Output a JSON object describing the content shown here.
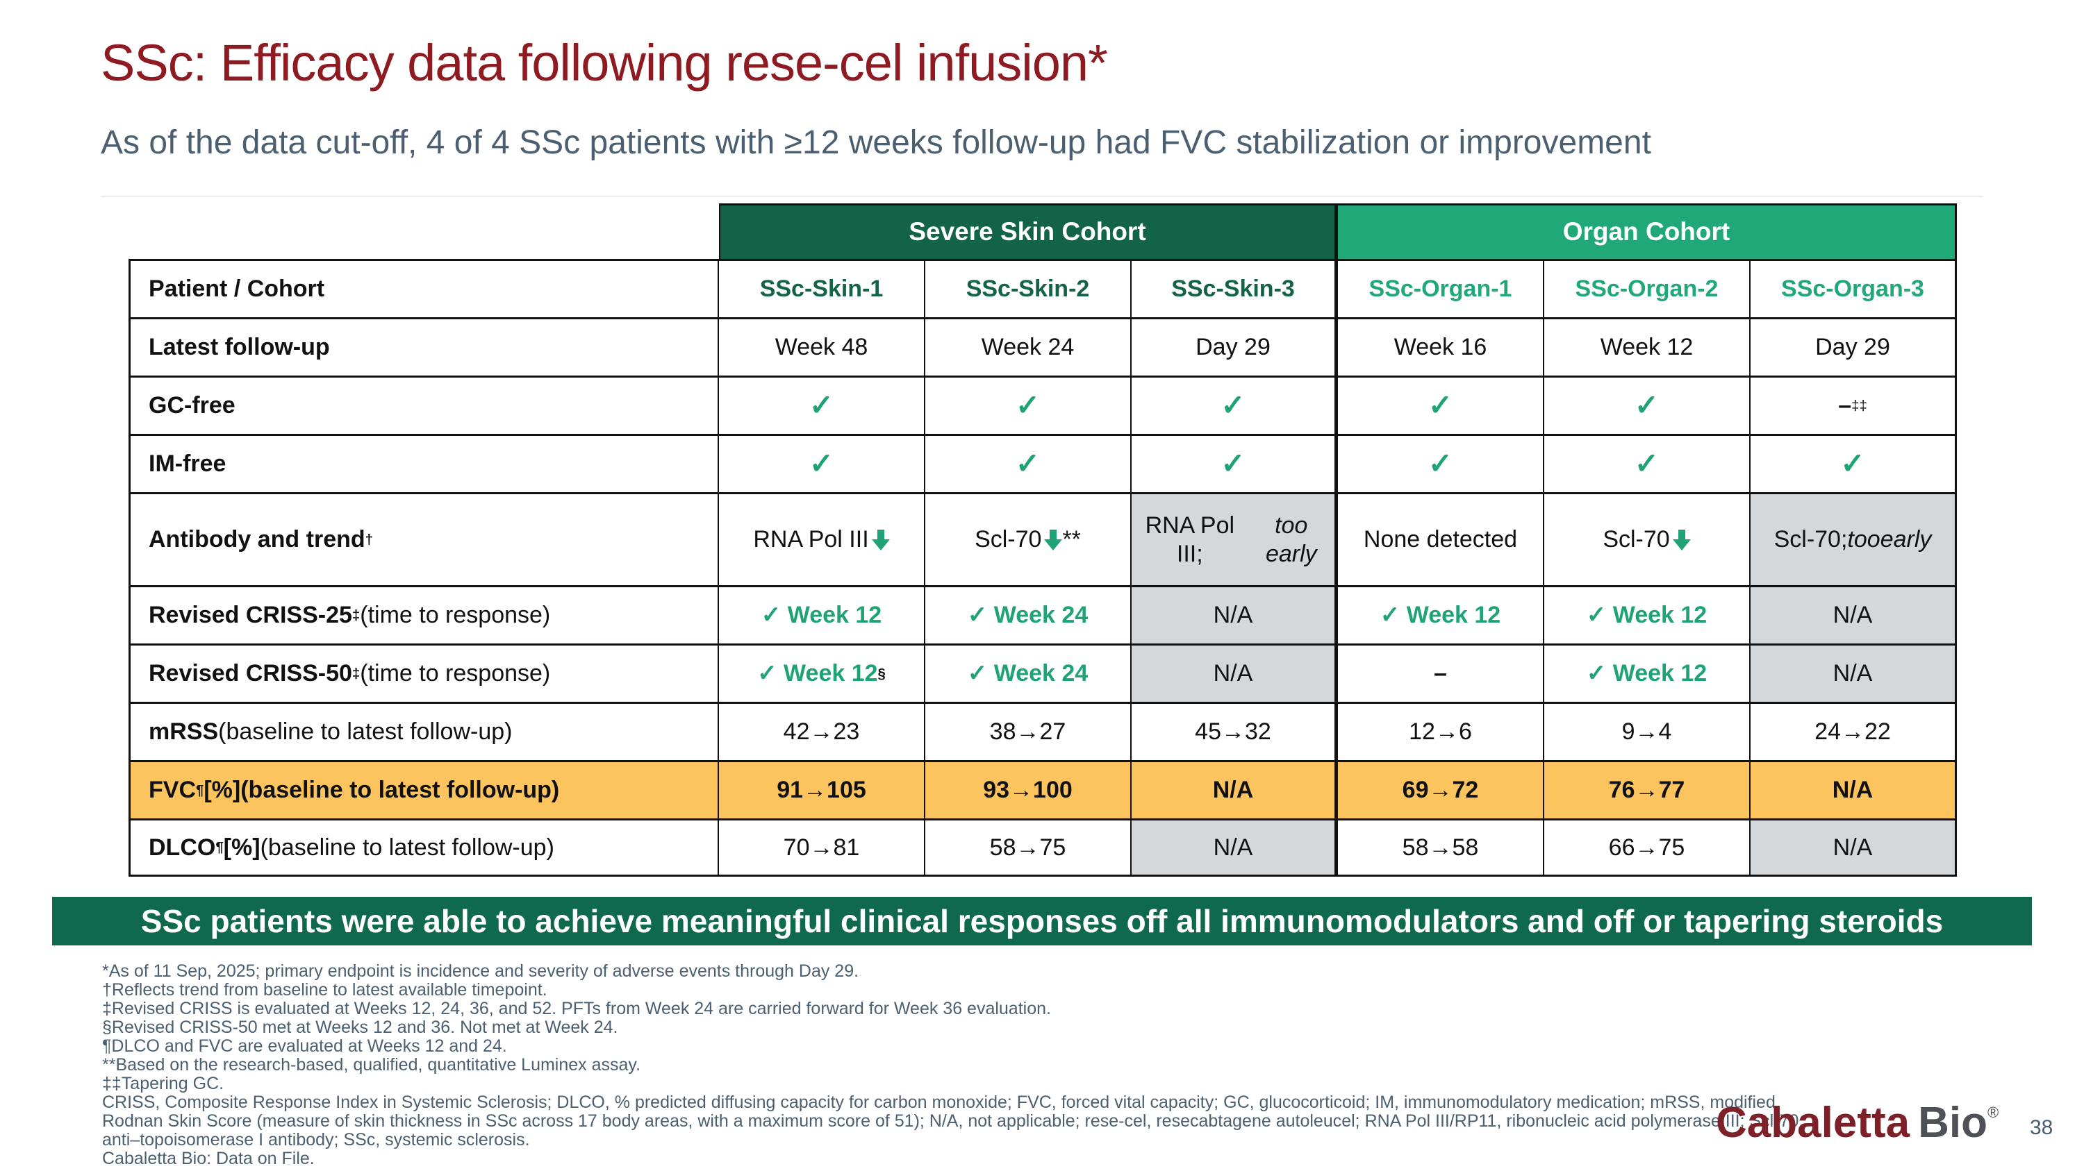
{
  "slide": {
    "title": "SSc: Efficacy data following rese-cel infusion*",
    "subtitle": "As of the data cut-off, 4 of 4 SSc patients with ≥12 weeks follow-up had FVC stabilization or improvement",
    "banner": "SSc patients were able to achieve meaningful clinical responses off all immunomodulators and off or tapering steroids",
    "page_number": "38",
    "logo": {
      "word1": "Cabaletta",
      "word2": "Bio",
      "reg": "®"
    }
  },
  "colors": {
    "title_red": "#8E1B21",
    "subtitle_gray": "#4C5F70",
    "dark_green": "#136349",
    "light_green": "#21A878",
    "check_green": "#1FA376",
    "orange_row": "#FBC45F",
    "gray_cell": "#D5D8DA",
    "banner_green": "#0F6A4D"
  },
  "table": {
    "cohorts": [
      {
        "label": "Severe Skin Cohort",
        "tone": "dark"
      },
      {
        "label": "Organ Cohort",
        "tone": "light"
      }
    ],
    "header_row": {
      "label": "Patient / Cohort",
      "columns": [
        {
          "label": "SSc-Skin-1",
          "tone": "dark"
        },
        {
          "label": "SSc-Skin-2",
          "tone": "dark"
        },
        {
          "label": "SSc-Skin-3",
          "tone": "dark"
        },
        {
          "label": "SSc-Organ-1",
          "tone": "light"
        },
        {
          "label": "SSc-Organ-2",
          "tone": "light"
        },
        {
          "label": "SSc-Organ-3",
          "tone": "light"
        }
      ]
    },
    "rows": [
      {
        "name": "latest-follow-up",
        "label": [
          {
            "t": "Latest follow-up",
            "b": true
          }
        ],
        "cells": [
          {
            "parts": [
              {
                "t": "Week 48"
              }
            ]
          },
          {
            "parts": [
              {
                "t": "Week 24"
              }
            ]
          },
          {
            "parts": [
              {
                "t": "Day 29"
              }
            ]
          },
          {
            "parts": [
              {
                "t": "Week 16"
              }
            ]
          },
          {
            "parts": [
              {
                "t": "Week 12"
              }
            ]
          },
          {
            "parts": [
              {
                "t": "Day 29"
              }
            ]
          }
        ]
      },
      {
        "name": "gc-free",
        "label": [
          {
            "t": "GC-free",
            "b": true
          }
        ],
        "cells": [
          {
            "parts": [
              {
                "check": true
              }
            ]
          },
          {
            "parts": [
              {
                "check": true
              }
            ]
          },
          {
            "parts": [
              {
                "check": true
              }
            ]
          },
          {
            "parts": [
              {
                "check": true
              }
            ]
          },
          {
            "parts": [
              {
                "check": true
              }
            ]
          },
          {
            "parts": [
              {
                "t": "–",
                "b": true
              },
              {
                "t": "‡‡",
                "sup": true
              }
            ]
          }
        ]
      },
      {
        "name": "im-free",
        "label": [
          {
            "t": "IM-free",
            "b": true
          }
        ],
        "cells": [
          {
            "parts": [
              {
                "check": true
              }
            ]
          },
          {
            "parts": [
              {
                "check": true
              }
            ]
          },
          {
            "parts": [
              {
                "check": true
              }
            ]
          },
          {
            "parts": [
              {
                "check": true
              }
            ]
          },
          {
            "parts": [
              {
                "check": true
              }
            ]
          },
          {
            "parts": [
              {
                "check": true
              }
            ]
          }
        ]
      },
      {
        "name": "antibody-and-trend",
        "label": [
          {
            "t": "Antibody and trend",
            "b": true
          },
          {
            "t": "†",
            "sup": true,
            "b": true
          }
        ],
        "cells": [
          {
            "parts": [
              {
                "t": "RNA Pol III "
              },
              {
                "arrow": true
              }
            ]
          },
          {
            "parts": [
              {
                "t": "Scl-70 "
              },
              {
                "arrow": true
              },
              {
                "t": "**"
              }
            ]
          },
          {
            "bg": "gray",
            "parts": [
              {
                "t": "RNA Pol III;"
              },
              {
                "br": true
              },
              {
                "t": "too early",
                "i": true
              }
            ]
          },
          {
            "parts": [
              {
                "t": "None detected"
              }
            ]
          },
          {
            "parts": [
              {
                "t": "Scl-70 "
              },
              {
                "arrow": true
              }
            ]
          },
          {
            "bg": "gray",
            "parts": [
              {
                "t": "Scl-70; "
              },
              {
                "t": "too",
                "i": true
              },
              {
                "br": true
              },
              {
                "t": "early",
                "i": true
              }
            ]
          }
        ]
      },
      {
        "name": "revised-criss-25",
        "label": [
          {
            "t": "Revised CRISS-25",
            "b": true
          },
          {
            "t": "‡",
            "sup": true,
            "b": true
          },
          {
            "t": " (time to response)"
          }
        ],
        "cells": [
          {
            "green": true,
            "parts": [
              {
                "t": "✓ Week 12"
              }
            ]
          },
          {
            "green": true,
            "parts": [
              {
                "t": "✓ Week 24"
              }
            ]
          },
          {
            "bg": "gray",
            "parts": [
              {
                "t": "N/A"
              }
            ]
          },
          {
            "green": true,
            "parts": [
              {
                "t": "✓ Week 12"
              }
            ]
          },
          {
            "green": true,
            "parts": [
              {
                "t": "✓ Week 12"
              }
            ]
          },
          {
            "bg": "gray",
            "parts": [
              {
                "t": "N/A"
              }
            ]
          }
        ]
      },
      {
        "name": "revised-criss-50",
        "label": [
          {
            "t": "Revised CRISS-50",
            "b": true
          },
          {
            "t": "‡",
            "sup": true,
            "b": true
          },
          {
            "t": " (time to response)"
          }
        ],
        "cells": [
          {
            "green": true,
            "parts": [
              {
                "t": "✓ Week 12"
              },
              {
                "t": "§",
                "sup": true,
                "black": true
              }
            ]
          },
          {
            "green": true,
            "parts": [
              {
                "t": "✓ Week 24"
              }
            ]
          },
          {
            "bg": "gray",
            "parts": [
              {
                "t": "N/A"
              }
            ]
          },
          {
            "parts": [
              {
                "t": "–",
                "b": true
              }
            ]
          },
          {
            "green": true,
            "parts": [
              {
                "t": "✓ Week 12"
              }
            ]
          },
          {
            "bg": "gray",
            "parts": [
              {
                "t": "N/A"
              }
            ]
          }
        ]
      },
      {
        "name": "mrss",
        "label": [
          {
            "t": "mRSS",
            "b": true
          },
          {
            "t": " (baseline to latest follow-up)"
          }
        ],
        "cells": [
          {
            "parts": [
              {
                "t": "42→23"
              }
            ]
          },
          {
            "parts": [
              {
                "t": "38→27"
              }
            ]
          },
          {
            "parts": [
              {
                "t": "45→32"
              }
            ]
          },
          {
            "parts": [
              {
                "t": "12→6"
              }
            ]
          },
          {
            "parts": [
              {
                "t": "9→4"
              }
            ]
          },
          {
            "parts": [
              {
                "t": "24→22"
              }
            ]
          }
        ]
      },
      {
        "name": "fvc",
        "orange": true,
        "label": [
          {
            "t": "FVC",
            "b": true
          },
          {
            "t": "¶",
            "sup": true,
            "b": true
          },
          {
            "t": " [%] ",
            "b": true
          },
          {
            "t": "(baseline to latest follow-up)",
            "b": true
          }
        ],
        "cells": [
          {
            "bg": "orange",
            "bold": true,
            "parts": [
              {
                "t": "91→105"
              }
            ]
          },
          {
            "bg": "orange",
            "bold": true,
            "parts": [
              {
                "t": "93→100"
              }
            ]
          },
          {
            "bg": "orange",
            "bold": true,
            "parts": [
              {
                "t": "N/A"
              }
            ]
          },
          {
            "bg": "orange",
            "bold": true,
            "parts": [
              {
                "t": "69→72"
              }
            ]
          },
          {
            "bg": "orange",
            "bold": true,
            "parts": [
              {
                "t": "76→77"
              }
            ]
          },
          {
            "bg": "orange",
            "bold": true,
            "parts": [
              {
                "t": "N/A"
              }
            ]
          }
        ]
      },
      {
        "name": "dlco",
        "label": [
          {
            "t": "DLCO",
            "b": true
          },
          {
            "t": "¶",
            "sup": true,
            "b": true
          },
          {
            "t": " [%] ",
            "b": true
          },
          {
            "t": "(baseline to latest follow-up)"
          }
        ],
        "cells": [
          {
            "parts": [
              {
                "t": "70→81"
              }
            ]
          },
          {
            "parts": [
              {
                "t": "58→75"
              }
            ]
          },
          {
            "bg": "gray",
            "parts": [
              {
                "t": "N/A"
              }
            ]
          },
          {
            "parts": [
              {
                "t": "58→58"
              }
            ]
          },
          {
            "parts": [
              {
                "t": "66→75"
              }
            ]
          },
          {
            "bg": "gray",
            "parts": [
              {
                "t": "N/A"
              }
            ]
          }
        ]
      }
    ]
  },
  "footnotes": [
    "*As of 11 Sep, 2025; primary endpoint is incidence and severity of adverse events through Day 29.",
    "†Reflects trend from baseline to latest available timepoint.",
    "‡Revised CRISS is evaluated at Weeks 12, 24, 36, and 52. PFTs from Week 24 are carried forward for Week 36 evaluation.",
    "§Revised CRISS-50 met at Weeks 12 and 36. Not met at Week 24.",
    "¶DLCO and FVC are evaluated at Weeks 12 and 24.",
    "**Based on the research-based, qualified, quantitative Luminex assay.",
    "‡‡Tapering GC.",
    "CRISS, Composite Response Index in Systemic Sclerosis; DLCO, % predicted diffusing capacity for carbon monoxide; FVC, forced vital capacity; GC, glucocorticoid; IM, immunomodulatory medication; mRSS, modified",
    "Rodnan Skin Score (measure of skin thickness in SSc across 17 body areas, with a maximum score of 51); N/A, not applicable; rese-cel, resecabtagene autoleucel; RNA Pol III/RP11, ribonucleic acid polymerase III; Scl-70,",
    "anti–topoisomerase I antibody; SSc, systemic sclerosis.",
    "Cabaletta Bio: Data on File."
  ]
}
